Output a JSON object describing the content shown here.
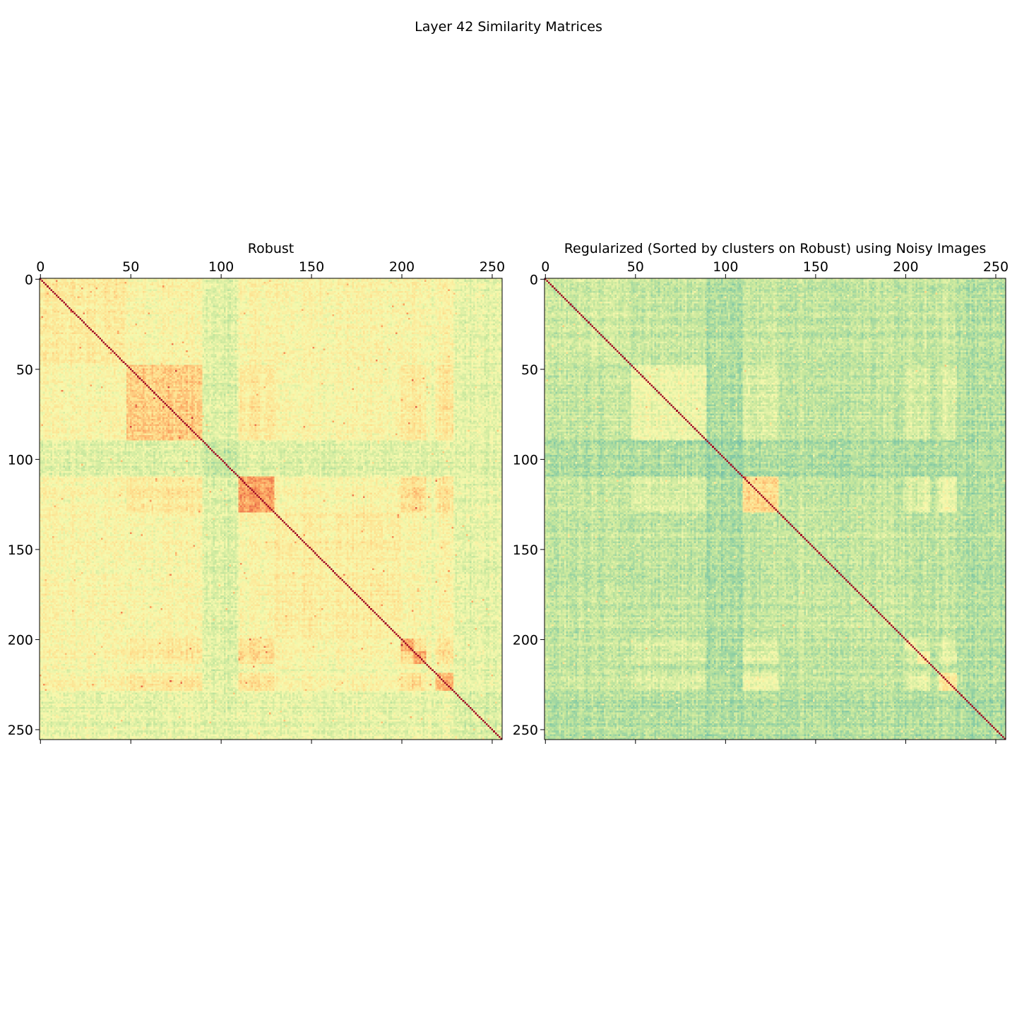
{
  "figure": {
    "suptitle": "Layer 42 Similarity Matrices"
  },
  "colormap": {
    "name": "Spectral_r",
    "stops": [
      "#3a66b0",
      "#4fa2b4",
      "#86cba4",
      "#c7e79d",
      "#f7f9ae",
      "#fedf8e",
      "#fb9f5d",
      "#dd5040",
      "#a10c26"
    ]
  },
  "chart_data": [
    {
      "type": "heatmap",
      "title": "Robust",
      "size": 256,
      "xlim": [
        0,
        255
      ],
      "ylim": [
        255,
        0
      ],
      "ticks": [
        0,
        50,
        100,
        150,
        200,
        250
      ],
      "tick_labels": [
        "0",
        "50",
        "100",
        "150",
        "200",
        "250"
      ],
      "x_ticks_position": "top",
      "y_axis_inverted": true,
      "diagonal_value": 1.0,
      "clusters": [
        {
          "start": 0,
          "end": 48,
          "value": 0.56
        },
        {
          "start": 48,
          "end": 90,
          "value": 0.66
        },
        {
          "start": 90,
          "end": 110,
          "value": 0.38
        },
        {
          "start": 110,
          "end": 130,
          "value": 0.74
        },
        {
          "start": 130,
          "end": 200,
          "value": 0.56
        },
        {
          "start": 200,
          "end": 207,
          "value": 0.72
        },
        {
          "start": 207,
          "end": 214,
          "value": 0.74
        },
        {
          "start": 214,
          "end": 219,
          "value": 0.5
        },
        {
          "start": 219,
          "end": 229,
          "value": 0.68
        },
        {
          "start": 229,
          "end": 256,
          "value": 0.42
        }
      ],
      "between_cluster_value": 0.49,
      "noise": 0.06
    },
    {
      "type": "heatmap",
      "title": "Regularized (Sorted by clusters on Robust) using Noisy Images",
      "size": 256,
      "xlim": [
        0,
        255
      ],
      "ylim": [
        255,
        0
      ],
      "ticks": [
        0,
        50,
        100,
        150,
        200,
        250
      ],
      "tick_labels": [
        "0",
        "50",
        "100",
        "150",
        "200",
        "250"
      ],
      "x_ticks_position": "top",
      "y_axis_inverted": true,
      "diagonal_value": 1.0,
      "clusters": [
        {
          "start": 0,
          "end": 48,
          "value": 0.4
        },
        {
          "start": 48,
          "end": 90,
          "value": 0.48
        },
        {
          "start": 90,
          "end": 110,
          "value": 0.3
        },
        {
          "start": 110,
          "end": 130,
          "value": 0.62
        },
        {
          "start": 130,
          "end": 200,
          "value": 0.38
        },
        {
          "start": 200,
          "end": 207,
          "value": 0.48
        },
        {
          "start": 207,
          "end": 214,
          "value": 0.55
        },
        {
          "start": 214,
          "end": 219,
          "value": 0.38
        },
        {
          "start": 219,
          "end": 229,
          "value": 0.58
        },
        {
          "start": 229,
          "end": 256,
          "value": 0.32
        }
      ],
      "between_cluster_value": 0.36,
      "noise": 0.06
    }
  ]
}
